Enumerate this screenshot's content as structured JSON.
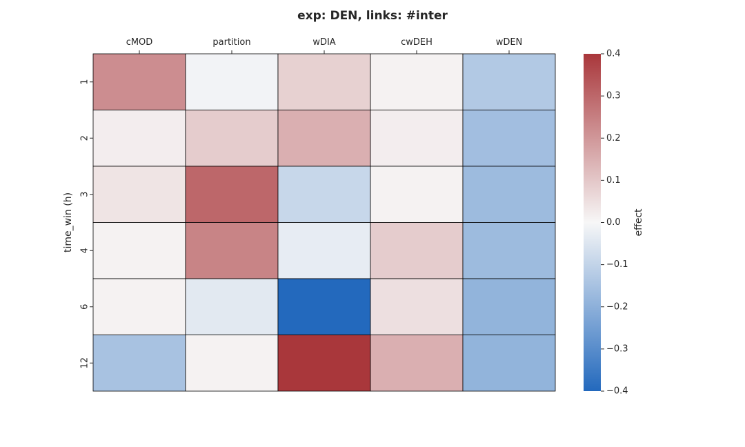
{
  "chart_data": {
    "type": "heatmap",
    "title": "exp: DEN, links: #inter",
    "xlabel": "",
    "ylabel": "time_win (h)",
    "x_ticks_position": "top",
    "columns": [
      "cMOD",
      "partition",
      "wDIA",
      "cwDEH",
      "wDEN"
    ],
    "rows": [
      "1",
      "2",
      "3",
      "4",
      "6",
      "12"
    ],
    "values": [
      [
        0.22,
        -0.01,
        0.08,
        0.01,
        -0.13
      ],
      [
        0.02,
        0.09,
        0.15,
        0.02,
        -0.16
      ],
      [
        0.04,
        0.3,
        -0.09,
        0.01,
        -0.17
      ],
      [
        0.01,
        0.24,
        -0.03,
        0.09,
        -0.17
      ],
      [
        0.01,
        -0.04,
        -0.4,
        0.05,
        -0.19
      ],
      [
        -0.15,
        0.01,
        0.4,
        0.15,
        -0.19
      ]
    ],
    "colorbar": {
      "label": "effect",
      "vmin": -0.4,
      "vmax": 0.4,
      "ticks": [
        0.4,
        0.3,
        0.2,
        0.1,
        0.0,
        -0.1,
        -0.2,
        -0.3,
        -0.4
      ],
      "tick_labels": [
        "0.4",
        "0.3",
        "0.2",
        "0.1",
        "0.0",
        "−0.1",
        "−0.2",
        "−0.3",
        "−0.4"
      ],
      "colormap": "vlag",
      "low_color": "#2369bd",
      "mid_color": "#f7f7f7",
      "high_color": "#a9373b"
    },
    "grid": true
  }
}
